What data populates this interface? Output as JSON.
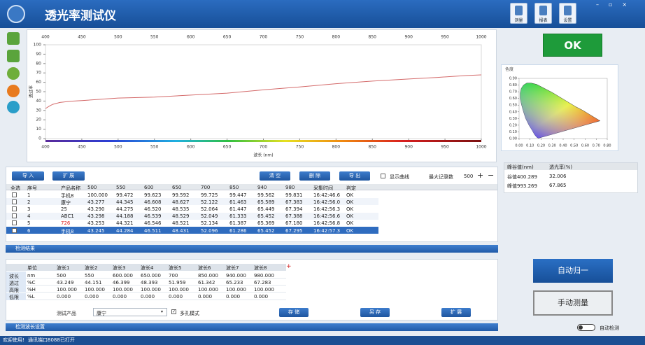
{
  "titlebar": {
    "title": "透光率测试仪",
    "buttons": [
      "测量",
      "报表",
      "设置"
    ]
  },
  "chart_data": [
    {
      "type": "line",
      "xlabel": "波长 (nm)",
      "ylabel": "透过率",
      "x": [
        400,
        405,
        410,
        420,
        435,
        450,
        500,
        550,
        600,
        650,
        700,
        750,
        800,
        850,
        900,
        940,
        980,
        1000
      ],
      "series": [
        {
          "color": "#d46a6a",
          "values": [
            32.0,
            34.5,
            36.5,
            38.5,
            39.8,
            40.5,
            43.2,
            44.2,
            46.4,
            48.4,
            52.0,
            55.0,
            58.5,
            61.3,
            63.5,
            65.2,
            67.3,
            67.9
          ]
        }
      ],
      "xlim": [
        400,
        1000
      ],
      "xticks": [
        400,
        450,
        500,
        550,
        600,
        650,
        700,
        750,
        800,
        850,
        900,
        950,
        1000
      ],
      "ylim": [
        0,
        100
      ],
      "yticks": [
        0,
        10,
        20,
        30,
        40,
        50,
        60,
        70,
        80,
        90,
        100
      ],
      "grid": false
    },
    {
      "type": "chromaticity",
      "title": "色度",
      "xlim": [
        0,
        0.8
      ],
      "ylim": [
        0,
        0.9
      ],
      "xticks": [
        {
          "value": 0,
          "label": "0.00"
        },
        {
          "value": 0.1,
          "label": "0.10"
        },
        {
          "value": 0.2,
          "label": "0.20"
        },
        {
          "value": 0.3,
          "label": "0.30"
        },
        {
          "value": 0.4,
          "label": "0.40"
        },
        {
          "value": 0.5,
          "label": "0.50"
        },
        {
          "value": 0.6,
          "label": "0.60"
        },
        {
          "value": 0.7,
          "label": "0.70"
        },
        {
          "value": 0.8,
          "label": "0.80"
        }
      ],
      "yticks": [
        {
          "value": 0,
          "label": "0.00"
        },
        {
          "value": 0.1,
          "label": "0.10"
        },
        {
          "value": 0.2,
          "label": "0.20"
        },
        {
          "value": 0.3,
          "label": "0.30"
        },
        {
          "value": 0.4,
          "label": "0.40"
        },
        {
          "value": 0.5,
          "label": "0.50"
        },
        {
          "value": 0.6,
          "label": "0.60"
        },
        {
          "value": 0.7,
          "label": "0.70"
        },
        {
          "value": 0.8,
          "label": "0.80"
        },
        {
          "value": 0.9,
          "label": "0.90"
        }
      ]
    }
  ],
  "ok_button": "OK",
  "peak_table": {
    "headers": [
      "峰谷值(nm)",
      "透光率(%)"
    ],
    "rows": [
      [
        "谷值400.289",
        "32.006"
      ],
      [
        "峰值993.269",
        "67.865"
      ]
    ]
  },
  "toolbar": {
    "left_buttons": [
      "导 入",
      "扩 展"
    ],
    "right_buttons": [
      "清 空",
      "删 除",
      "导 出"
    ],
    "show_curve": "显示曲线",
    "max_records_label": "最大记录数",
    "max_records": "500",
    "plus": "+",
    "minus": "−"
  },
  "records": {
    "headers": [
      "全选",
      "序号",
      "产品名称",
      "500",
      "550",
      "600",
      "650",
      "700",
      "850",
      "940",
      "980",
      "采集时间",
      "判定"
    ],
    "rows": [
      [
        "1",
        "手机8",
        "100.000",
        "99.472",
        "99.623",
        "99.592",
        "99.725",
        "99.447",
        "99.562",
        "99.831",
        "16:42:46.6",
        "OK"
      ],
      [
        "2",
        "康宁",
        "43.277",
        "44.345",
        "46.608",
        "48.627",
        "52.122",
        "61.463",
        "65.589",
        "67.383",
        "16:42:56.0",
        "OK"
      ],
      [
        "3",
        "25",
        "43.290",
        "44.275",
        "46.520",
        "48.535",
        "52.064",
        "61.447",
        "65.449",
        "67.394",
        "16:42:56.3",
        "OK"
      ],
      [
        "4",
        "ABC1",
        "43.298",
        "44.188",
        "46.539",
        "48.529",
        "52.049",
        "61.333",
        "65.452",
        "67.388",
        "16:42:56.6",
        "OK"
      ],
      [
        "5",
        "726",
        "43.253",
        "44.321",
        "46.546",
        "48.521",
        "52.134",
        "61.387",
        "65.369",
        "67.180",
        "16:42:56.8",
        "OK"
      ],
      [
        "6",
        "手机8",
        "43.245",
        "44.284",
        "46.511",
        "48.431",
        "52.096",
        "61.286",
        "65.452",
        "67.295",
        "16:42:57.3",
        "OK"
      ]
    ]
  },
  "result_section": "检测结果",
  "result_table": {
    "headers": [
      "单位",
      "波长1",
      "波长2",
      "波长3",
      "波长4",
      "波长5",
      "波长6",
      "波长7",
      "波长8"
    ],
    "add": "+",
    "rows": [
      [
        "波长",
        "nm",
        "500",
        "550",
        "600.000",
        "650.000",
        "700",
        "850.000",
        "940.000",
        "980.000"
      ],
      [
        "透过",
        "%C",
        "43.249",
        "44.151",
        "46.399",
        "48.393",
        "51.959",
        "61.342",
        "65.233",
        "67.283"
      ],
      [
        "高限",
        "%H",
        "100.000",
        "100.000",
        "100.000",
        "100.000",
        "100.000",
        "100.000",
        "100.000",
        "100.000"
      ],
      [
        "低限",
        "%L",
        "0.000",
        "0.000",
        "0.000",
        "0.000",
        "0.000",
        "0.000",
        "0.000",
        "0.000"
      ]
    ]
  },
  "product_row": {
    "label": "测试产品",
    "product": "康宁",
    "multi_hole": "多孔模式",
    "buttons": [
      "存 储",
      "另 存",
      "扩 展"
    ]
  },
  "wavelength_section": "检测波长设置",
  "side_buttons": {
    "auto_normalize": "自动归一",
    "manual_measure": "手动测量",
    "auto_detect": "自动检测"
  },
  "statusbar": {
    "welcome": "欢迎使用!",
    "port": "通讯端口8088已打开"
  }
}
